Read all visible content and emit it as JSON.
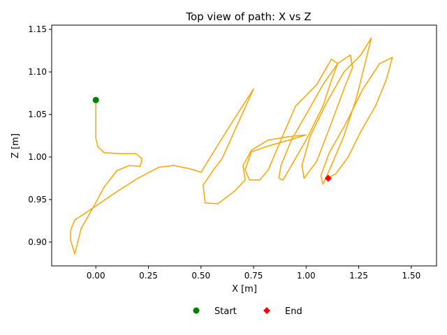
{
  "chart_data": {
    "type": "line",
    "title": "Top view of path: X vs Z",
    "xlabel": "X [m]",
    "ylabel": "Z [m]",
    "xlim": [
      -0.21,
      1.62
    ],
    "ylim": [
      0.872,
      1.155
    ],
    "xticks": [
      0.0,
      0.25,
      0.5,
      0.75,
      1.0,
      1.25,
      1.5
    ],
    "xtick_labels": [
      "0.00",
      "0.25",
      "0.50",
      "0.75",
      "1.00",
      "1.25",
      "1.50"
    ],
    "yticks": [
      0.9,
      0.95,
      1.0,
      1.05,
      1.1,
      1.15
    ],
    "ytick_labels": [
      "0.90",
      "0.95",
      "1.00",
      "1.05",
      "1.10",
      "1.15"
    ],
    "grid": false,
    "legend_position": "bottom-center",
    "path_color": "#FFA500",
    "series": [
      {
        "points": [
          [
            0.0,
            1.067
          ],
          [
            0.0,
            1.022
          ],
          [
            0.01,
            1.012
          ],
          [
            0.04,
            1.005
          ],
          [
            0.12,
            1.004
          ],
          [
            0.19,
            1.004
          ],
          [
            0.22,
            0.998
          ],
          [
            0.21,
            0.989
          ],
          [
            0.16,
            0.99
          ],
          [
            0.1,
            0.984
          ],
          [
            0.04,
            0.965
          ],
          [
            -0.01,
            0.942
          ],
          [
            -0.07,
            0.916
          ],
          [
            -0.1,
            0.886
          ],
          [
            -0.12,
            0.902
          ],
          [
            -0.12,
            0.914
          ],
          [
            -0.1,
            0.926
          ],
          [
            -0.02,
            0.939
          ],
          [
            0.08,
            0.956
          ],
          [
            0.2,
            0.975
          ],
          [
            0.3,
            0.988
          ],
          [
            0.37,
            0.99
          ],
          [
            0.45,
            0.986
          ],
          [
            0.5,
            0.982
          ],
          [
            0.62,
            1.03
          ],
          [
            0.75,
            1.08
          ],
          [
            0.6,
            0.998
          ],
          [
            0.56,
            0.985
          ],
          [
            0.51,
            0.967
          ],
          [
            0.52,
            0.946
          ],
          [
            0.58,
            0.945
          ],
          [
            0.66,
            0.96
          ],
          [
            0.71,
            0.973
          ],
          [
            0.7,
            0.99
          ],
          [
            0.74,
            1.008
          ],
          [
            0.82,
            1.02
          ],
          [
            0.92,
            1.024
          ],
          [
            1.0,
            1.026
          ],
          [
            0.92,
            1.02
          ],
          [
            0.82,
            1.013
          ],
          [
            0.74,
            1.006
          ],
          [
            0.71,
            0.985
          ],
          [
            0.73,
            0.973
          ],
          [
            0.78,
            0.973
          ],
          [
            0.82,
            0.985
          ],
          [
            0.88,
            1.02
          ],
          [
            0.95,
            1.06
          ],
          [
            1.05,
            1.085
          ],
          [
            1.12,
            1.115
          ],
          [
            1.15,
            1.11
          ],
          [
            1.12,
            1.09
          ],
          [
            1.08,
            1.06
          ],
          [
            1.0,
            1.02
          ],
          [
            0.93,
            0.99
          ],
          [
            0.89,
            0.973
          ],
          [
            0.87,
            0.975
          ],
          [
            0.88,
            0.99
          ],
          [
            0.93,
            1.02
          ],
          [
            1.0,
            1.05
          ],
          [
            1.08,
            1.085
          ],
          [
            1.15,
            1.11
          ],
          [
            1.21,
            1.12
          ],
          [
            1.22,
            1.105
          ],
          [
            1.18,
            1.08
          ],
          [
            1.12,
            1.04
          ],
          [
            1.05,
            0.995
          ],
          [
            0.99,
            0.975
          ],
          [
            0.98,
            0.99
          ],
          [
            1.02,
            1.025
          ],
          [
            1.1,
            1.065
          ],
          [
            1.18,
            1.1
          ],
          [
            1.26,
            1.12
          ],
          [
            1.31,
            1.14
          ],
          [
            1.28,
            1.11
          ],
          [
            1.24,
            1.07
          ],
          [
            1.18,
            1.025
          ],
          [
            1.12,
            0.99
          ],
          [
            1.08,
            0.968
          ],
          [
            1.07,
            0.978
          ],
          [
            1.11,
            1.005
          ],
          [
            1.19,
            1.04
          ],
          [
            1.27,
            1.08
          ],
          [
            1.35,
            1.11
          ],
          [
            1.41,
            1.117
          ],
          [
            1.38,
            1.09
          ],
          [
            1.33,
            1.06
          ],
          [
            1.26,
            1.03
          ],
          [
            1.2,
            1.0
          ],
          [
            1.14,
            0.98
          ],
          [
            1.1,
            0.975
          ]
        ]
      }
    ],
    "markers": [
      {
        "label": "Start",
        "x": 0.0,
        "y": 1.067,
        "color": "#008000",
        "shape": "circle"
      },
      {
        "label": "End",
        "x": 1.105,
        "y": 0.975,
        "color": "#FF0000",
        "shape": "diamond"
      }
    ]
  }
}
